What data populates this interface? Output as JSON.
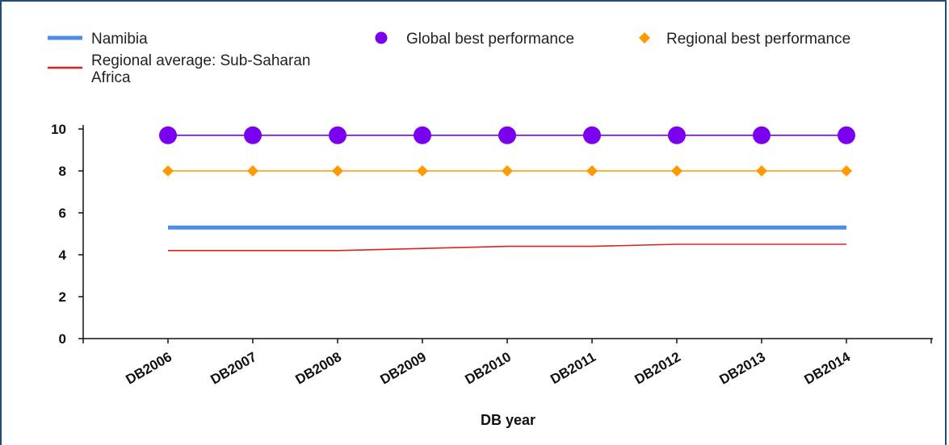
{
  "chart_data": {
    "type": "line",
    "title": "",
    "xlabel": "DB year",
    "ylabel": "",
    "ylim": [
      0,
      10
    ],
    "yticks": [
      0,
      2,
      4,
      6,
      8,
      10
    ],
    "categories": [
      "DB2006",
      "DB2007",
      "DB2008",
      "DB2009",
      "DB2010",
      "DB2011",
      "DB2012",
      "DB2013",
      "DB2014"
    ],
    "legend_position": "top",
    "series": [
      {
        "name": "Namibia",
        "color": "#4a8ee6",
        "marker": "none",
        "values": [
          5.3,
          5.3,
          5.3,
          5.3,
          5.3,
          5.3,
          5.3,
          5.3,
          5.3
        ]
      },
      {
        "name": "Global best performance",
        "color": "#7b00f0",
        "marker": "circle",
        "values": [
          9.7,
          9.7,
          9.7,
          9.7,
          9.7,
          9.7,
          9.7,
          9.7,
          9.7
        ]
      },
      {
        "name": "Regional best performance",
        "color": "#ff9900",
        "marker": "diamond",
        "values": [
          8.0,
          8.0,
          8.0,
          8.0,
          8.0,
          8.0,
          8.0,
          8.0,
          8.0
        ]
      },
      {
        "name": "Regional average: Sub-Saharan Africa",
        "color": "#e0201b",
        "marker": "none",
        "values": [
          4.2,
          4.2,
          4.2,
          4.3,
          4.4,
          4.4,
          4.5,
          4.5,
          4.5
        ]
      }
    ]
  }
}
